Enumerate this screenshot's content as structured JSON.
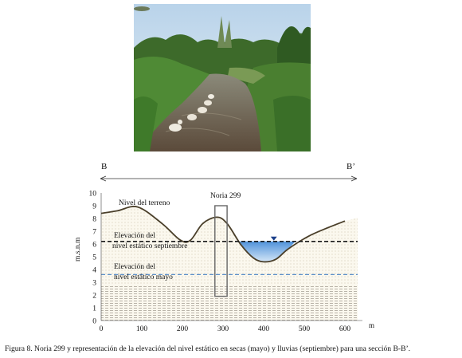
{
  "photo": {
    "alt_icon": "field-photo-stream-with-ducks"
  },
  "section": {
    "left_label": "B",
    "right_label": "B’",
    "well_label": "Noria 299",
    "terrain_label": "Nivel del terreno",
    "sept_label_line1": "Elevación  del",
    "sept_label_line2": "nivel estático septiembre",
    "may_label_line1": "Elevación  del",
    "may_label_line2": "nivel estático mayo",
    "y_axis_label": "m.s.n.m",
    "x_axis_unit": "m",
    "y_ticks": [
      "0",
      "1",
      "2",
      "3",
      "4",
      "5",
      "6",
      "7",
      "8",
      "9",
      "10"
    ],
    "x_ticks": [
      "0",
      "100",
      "200",
      "300",
      "400",
      "500",
      "600"
    ],
    "colors": {
      "september_level": "#1a1a1a",
      "may_level": "#5b8fc9",
      "water": "#4a90d9",
      "soil": "#fbf8ee"
    }
  },
  "chart_data": {
    "type": "area",
    "xlabel": "m",
    "ylabel": "m.s.n.m",
    "xlim": [
      0,
      650
    ],
    "ylim": [
      0,
      10
    ],
    "series": [
      {
        "name": "Nivel del terreno",
        "x": [
          0,
          40,
          90,
          150,
          195,
          220,
          250,
          285,
          310,
          345,
          375,
          400,
          430,
          460,
          510,
          560,
          600
        ],
        "y": [
          8.4,
          8.6,
          8.9,
          7.6,
          6.3,
          6.3,
          7.6,
          8.1,
          7.6,
          5.9,
          4.9,
          4.6,
          4.8,
          5.6,
          6.6,
          7.3,
          7.8
        ]
      },
      {
        "name": "Elevación del nivel estático septiembre",
        "x": [
          0,
          600
        ],
        "y": [
          6.2,
          6.2
        ]
      },
      {
        "name": "Elevación del nivel estático mayo",
        "x": [
          0,
          600
        ],
        "y": [
          3.6,
          3.6
        ]
      }
    ],
    "annotations": [
      "Noria 299"
    ]
  },
  "caption": "Figura 8. Noria 299 y representación de la elevación del nivel estático en secas (mayo) y lluvias (septiembre) para una sección B-B’."
}
